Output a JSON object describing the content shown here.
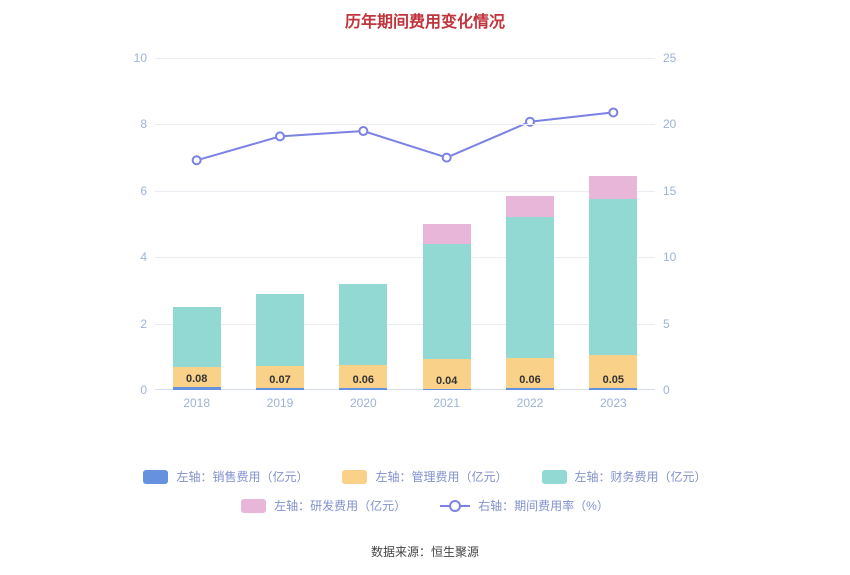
{
  "title": "历年期间费用变化情况",
  "footer": "数据来源：恒生聚源",
  "colors": {
    "title": "#c0343c",
    "axis_label": "#9db3d6",
    "bar_label": "#333333",
    "legend_text": "#8191cd",
    "grid": "#e9edf2",
    "sales": "#6691de",
    "management": "#fad189",
    "financial": "#92d8d3",
    "rnd": "#e7b6d8",
    "line": "#7b82e3"
  },
  "chart_data": {
    "type": "bar",
    "title": "历年期间费用变化情况",
    "categories": [
      "2018",
      "2019",
      "2020",
      "2021",
      "2022",
      "2023"
    ],
    "series": [
      {
        "name": "左轴：销售费用（亿元）",
        "type": "bar",
        "color_key": "sales",
        "values": [
          0.08,
          0.07,
          0.06,
          0.04,
          0.06,
          0.05
        ]
      },
      {
        "name": "左轴：管理费用（亿元）",
        "type": "bar",
        "color_key": "management",
        "values": [
          0.6,
          0.65,
          0.7,
          0.9,
          0.9,
          1.0
        ]
      },
      {
        "name": "左轴：财务费用（亿元）",
        "type": "bar",
        "color_key": "financial",
        "values": [
          1.82,
          2.18,
          2.44,
          3.46,
          4.24,
          4.7
        ]
      },
      {
        "name": "左轴：研发费用（亿元）",
        "type": "bar",
        "color_key": "rnd",
        "values": [
          0,
          0,
          0,
          0.6,
          0.65,
          0.7
        ]
      },
      {
        "name": "右轴：期间费用率（%）",
        "type": "line",
        "color_key": "line",
        "values": [
          17.3,
          19.1,
          19.5,
          17.5,
          20.2,
          20.9
        ]
      }
    ],
    "bar_labels": [
      "0.08",
      "0.07",
      "0.06",
      "0.04",
      "0.06",
      "0.05"
    ],
    "left_axis": {
      "min": 0,
      "max": 10,
      "ticks": [
        0,
        2,
        4,
        6,
        8,
        10
      ]
    },
    "right_axis": {
      "min": 0,
      "max": 25,
      "ticks": [
        0,
        5,
        10,
        15,
        20,
        25
      ]
    },
    "legend_position": "bottom",
    "grid": true
  },
  "legend": {
    "rows": [
      [
        {
          "label": "左轴：销售费用（亿元）",
          "color_key": "sales",
          "type": "rect"
        },
        {
          "label": "左轴：管理费用（亿元）",
          "color_key": "management",
          "type": "rect"
        },
        {
          "label": "左轴：财务费用（亿元）",
          "color_key": "financial",
          "type": "rect"
        }
      ],
      [
        {
          "label": "左轴：研发费用（亿元）",
          "color_key": "rnd",
          "type": "rect"
        },
        {
          "label": "右轴：期间费用率（%）",
          "color_key": "line",
          "type": "line"
        }
      ]
    ]
  }
}
